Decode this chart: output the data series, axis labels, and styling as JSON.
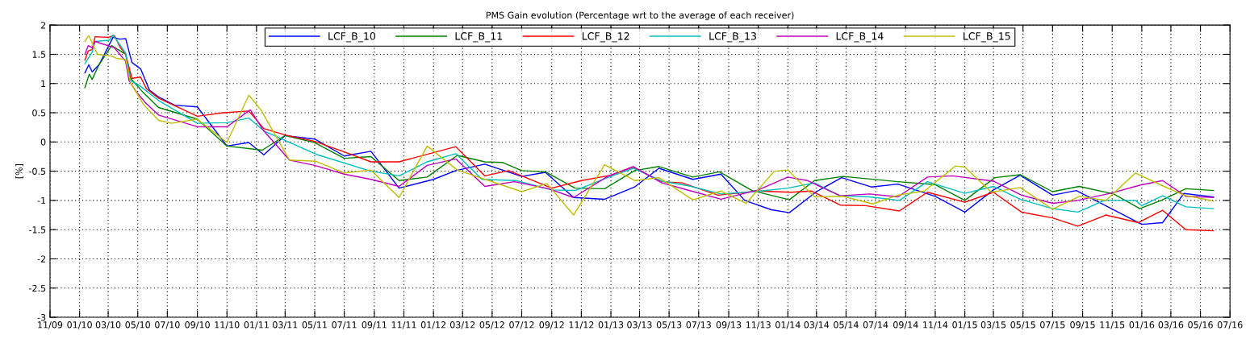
{
  "chart_data": {
    "type": "line",
    "title": "PMS Gain evolution (Percentage wrt to the average of each receiver)",
    "ylabel": "[%]",
    "xlim": [
      "2009-11-01",
      "2016-07-01"
    ],
    "xticks": [
      {
        "value": "2009-11-01",
        "label": "11/09"
      },
      {
        "value": "2010-01-01",
        "label": "01/10"
      },
      {
        "value": "2010-03-01",
        "label": "03/10"
      },
      {
        "value": "2010-05-01",
        "label": "05/10"
      },
      {
        "value": "2010-07-01",
        "label": "07/10"
      },
      {
        "value": "2010-09-01",
        "label": "09/10"
      },
      {
        "value": "2010-11-01",
        "label": "11/10"
      },
      {
        "value": "2011-01-01",
        "label": "01/11"
      },
      {
        "value": "2011-03-01",
        "label": "03/11"
      },
      {
        "value": "2011-05-01",
        "label": "05/11"
      },
      {
        "value": "2011-07-01",
        "label": "07/11"
      },
      {
        "value": "2011-09-01",
        "label": "09/11"
      },
      {
        "value": "2011-11-01",
        "label": "11/11"
      },
      {
        "value": "2012-01-01",
        "label": "01/12"
      },
      {
        "value": "2012-03-01",
        "label": "03/12"
      },
      {
        "value": "2012-05-01",
        "label": "05/12"
      },
      {
        "value": "2012-07-01",
        "label": "07/12"
      },
      {
        "value": "2012-09-01",
        "label": "09/12"
      },
      {
        "value": "2012-11-01",
        "label": "11/12"
      },
      {
        "value": "2013-01-01",
        "label": "01/13"
      },
      {
        "value": "2013-03-01",
        "label": "03/13"
      },
      {
        "value": "2013-05-01",
        "label": "05/13"
      },
      {
        "value": "2013-07-01",
        "label": "07/13"
      },
      {
        "value": "2013-09-01",
        "label": "09/13"
      },
      {
        "value": "2013-11-01",
        "label": "11/13"
      },
      {
        "value": "2014-01-01",
        "label": "01/14"
      },
      {
        "value": "2014-03-01",
        "label": "03/14"
      },
      {
        "value": "2014-05-01",
        "label": "05/14"
      },
      {
        "value": "2014-07-01",
        "label": "07/14"
      },
      {
        "value": "2014-09-01",
        "label": "09/14"
      },
      {
        "value": "2014-11-01",
        "label": "11/14"
      },
      {
        "value": "2015-01-01",
        "label": "01/15"
      },
      {
        "value": "2015-03-01",
        "label": "03/15"
      },
      {
        "value": "2015-05-01",
        "label": "05/15"
      },
      {
        "value": "2015-07-01",
        "label": "07/15"
      },
      {
        "value": "2015-09-01",
        "label": "09/15"
      },
      {
        "value": "2015-11-01",
        "label": "11/15"
      },
      {
        "value": "2016-01-01",
        "label": "01/16"
      },
      {
        "value": "2016-03-01",
        "label": "03/16"
      },
      {
        "value": "2016-05-01",
        "label": "05/16"
      },
      {
        "value": "2016-07-01",
        "label": "07/16"
      }
    ],
    "ylim": [
      -3,
      2
    ],
    "yticks": [
      -3,
      -2.5,
      -2,
      -1.5,
      -1,
      -0.5,
      0,
      0.5,
      1,
      1.5,
      2
    ],
    "grid": true,
    "legend": "top",
    "marker": "none",
    "line_style": "solid",
    "series": [
      {
        "name": "LCF_B_10",
        "color": "#0000ff",
        "x": [
          "2010-01-12",
          "2010-01-20",
          "2010-01-27",
          "2010-02-10",
          "2010-03-11",
          "2010-03-25",
          "2010-04-06",
          "2010-04-19",
          "2010-05-07",
          "2010-05-25",
          "2010-06-13",
          "2010-07-16",
          "2010-09-01",
          "2010-11-01",
          "2010-12-16",
          "2011-01-16",
          "2011-03-01",
          "2011-05-01",
          "2011-07-01",
          "2011-08-25",
          "2011-10-22",
          "2012-01-01",
          "2012-02-16",
          "2012-04-16",
          "2012-07-01",
          "2012-08-19",
          "2012-10-16",
          "2012-12-19",
          "2013-02-19",
          "2013-04-10",
          "2013-06-19",
          "2013-08-16",
          "2013-10-04",
          "2013-11-28",
          "2014-01-04",
          "2014-03-01",
          "2014-04-22",
          "2014-06-22",
          "2014-08-16",
          "2014-11-01",
          "2015-01-01",
          "2015-03-01",
          "2015-04-25",
          "2015-07-01",
          "2015-08-19",
          "2016-01-01",
          "2016-02-13",
          "2016-03-28",
          "2016-05-28"
        ],
        "values": [
          1.18,
          1.32,
          1.2,
          1.32,
          1.79,
          1.76,
          1.77,
          1.36,
          1.25,
          0.89,
          0.77,
          0.63,
          0.6,
          -0.07,
          -0.01,
          -0.22,
          0.11,
          0.05,
          -0.24,
          -0.16,
          -0.79,
          -0.64,
          -0.49,
          -0.38,
          -0.59,
          -0.52,
          -0.95,
          -0.98,
          -0.77,
          -0.45,
          -0.64,
          -0.55,
          -1,
          -1.16,
          -1.21,
          -0.85,
          -0.61,
          -0.77,
          -0.72,
          -0.93,
          -1.2,
          -0.82,
          -0.57,
          -0.91,
          -0.83,
          -1.41,
          -1.38,
          -0.88,
          -0.94
        ]
      },
      {
        "name": "LCF_B_11",
        "color": "#008000",
        "x": [
          "2010-01-12",
          "2010-01-21",
          "2010-01-27",
          "2010-02-10",
          "2010-03-08",
          "2010-04-06",
          "2010-04-16",
          "2010-05-13",
          "2010-06-13",
          "2010-09-01",
          "2010-11-01",
          "2011-01-13",
          "2011-03-01",
          "2011-05-01",
          "2011-07-01",
          "2011-08-25",
          "2011-10-22",
          "2011-12-19",
          "2012-02-19",
          "2012-04-16",
          "2012-05-22",
          "2012-07-01",
          "2012-08-19",
          "2012-10-19",
          "2012-12-19",
          "2013-02-19",
          "2013-04-10",
          "2013-06-19",
          "2013-08-13",
          "2013-10-19",
          "2014-01-04",
          "2014-02-25",
          "2014-04-25",
          "2014-08-16",
          "2014-11-01",
          "2015-01-01",
          "2015-03-04",
          "2015-04-25",
          "2015-07-01",
          "2015-08-25",
          "2015-11-04",
          "2015-12-28",
          "2016-02-10",
          "2016-04-01",
          "2016-05-28"
        ],
        "values": [
          0.93,
          1.16,
          1.07,
          1.32,
          1.65,
          1.5,
          1.09,
          0.84,
          0.59,
          0.39,
          -0.07,
          -0.14,
          0.11,
          -0.01,
          -0.28,
          -0.25,
          -0.66,
          -0.6,
          -0.23,
          -0.34,
          -0.35,
          -0.49,
          -0.51,
          -0.79,
          -0.8,
          -0.49,
          -0.42,
          -0.6,
          -0.51,
          -0.83,
          -0.99,
          -0.66,
          -0.59,
          -0.68,
          -0.73,
          -1,
          -0.61,
          -0.56,
          -0.85,
          -0.76,
          -0.89,
          -1.14,
          -1,
          -0.8,
          -0.83
        ]
      },
      {
        "name": "LCF_B_12",
        "color": "#ff0000",
        "x": [
          "2010-01-12",
          "2010-01-19",
          "2010-01-27",
          "2010-02-02",
          "2010-03-01",
          "2010-03-14",
          "2010-03-25",
          "2010-04-06",
          "2010-04-19",
          "2010-05-07",
          "2010-05-19",
          "2010-06-13",
          "2010-09-01",
          "2010-10-25",
          "2010-12-16",
          "2011-01-16",
          "2011-03-01",
          "2011-05-01",
          "2011-07-01",
          "2011-08-25",
          "2011-10-22",
          "2012-02-16",
          "2012-04-16",
          "2012-06-04",
          "2012-09-01",
          "2012-11-01",
          "2013-01-01",
          "2013-02-16",
          "2013-04-16",
          "2013-05-28",
          "2013-08-10",
          "2013-11-01",
          "2014-01-07",
          "2014-02-19",
          "2014-04-19",
          "2014-06-10",
          "2014-08-19",
          "2014-10-16",
          "2015-01-01",
          "2015-03-01",
          "2015-04-28",
          "2015-07-01",
          "2015-08-22",
          "2015-10-19",
          "2015-12-25",
          "2016-02-13",
          "2016-04-01",
          "2016-05-28"
        ],
        "values": [
          1.4,
          1.56,
          1.58,
          1.8,
          1.79,
          1.82,
          1.63,
          1.5,
          1.09,
          1.11,
          0.91,
          0.75,
          0.44,
          0.5,
          0.53,
          0.23,
          0.12,
          0.01,
          -0.17,
          -0.34,
          -0.34,
          -0.08,
          -0.58,
          -0.49,
          -0.79,
          -0.66,
          -0.57,
          -0.43,
          -0.68,
          -0.7,
          -0.91,
          -0.84,
          -0.86,
          -0.84,
          -1.08,
          -1.09,
          -1.18,
          -0.86,
          -1.03,
          -0.86,
          -1.2,
          -1.3,
          -1.44,
          -1.25,
          -1.38,
          -1.17,
          -1.5,
          -1.52
        ]
      },
      {
        "name": "LCF_B_13",
        "color": "#00bfbf",
        "x": [
          "2010-01-12",
          "2010-01-27",
          "2010-02-02",
          "2010-03-03",
          "2010-03-11",
          "2010-04-06",
          "2010-04-16",
          "2010-05-07",
          "2010-06-13",
          "2010-09-01",
          "2010-11-01",
          "2010-12-16",
          "2011-01-16",
          "2011-05-07",
          "2011-08-25",
          "2011-10-22",
          "2011-12-19",
          "2012-02-16",
          "2012-04-10",
          "2012-06-19",
          "2012-09-01",
          "2012-10-19",
          "2012-12-25",
          "2013-02-16",
          "2013-04-16",
          "2013-06-10",
          "2013-08-16",
          "2013-10-25",
          "2014-01-01",
          "2014-02-25",
          "2014-04-19",
          "2014-06-19",
          "2014-08-19",
          "2014-10-16",
          "2015-01-01",
          "2015-03-01",
          "2015-04-25",
          "2015-07-01",
          "2015-08-22",
          "2015-10-16",
          "2015-12-19",
          "2016-01-01",
          "2016-02-13",
          "2016-04-01",
          "2016-05-28"
        ],
        "values": [
          1.34,
          1.54,
          1.72,
          1.74,
          1.83,
          1.52,
          1.05,
          0.95,
          0.71,
          0.32,
          0.33,
          0.41,
          0.19,
          -0.22,
          -0.5,
          -0.58,
          -0.34,
          -0.2,
          -0.64,
          -0.66,
          -0.82,
          -0.83,
          -0.61,
          -0.45,
          -0.67,
          -0.75,
          -0.89,
          -0.85,
          -0.79,
          -0.7,
          -0.92,
          -0.94,
          -1,
          -0.68,
          -0.88,
          -0.76,
          -0.98,
          -1.14,
          -1.2,
          -1,
          -1,
          -1.09,
          -0.92,
          -1.11,
          -1.14
        ]
      },
      {
        "name": "LCF_B_14",
        "color": "#bf00bf",
        "x": [
          "2010-01-12",
          "2010-01-19",
          "2010-01-27",
          "2010-02-02",
          "2010-03-14",
          "2010-04-06",
          "2010-04-13",
          "2010-04-28",
          "2010-05-16",
          "2010-06-13",
          "2010-09-01",
          "2010-11-01",
          "2010-12-19",
          "2011-01-16",
          "2011-03-10",
          "2011-05-01",
          "2011-07-01",
          "2011-08-25",
          "2011-10-22",
          "2011-12-19",
          "2012-02-16",
          "2012-04-16",
          "2012-06-16",
          "2012-08-25",
          "2012-10-16",
          "2012-12-25",
          "2013-02-16",
          "2013-04-16",
          "2013-06-16",
          "2013-08-16",
          "2013-11-01",
          "2014-01-01",
          "2014-02-10",
          "2014-04-19",
          "2014-06-19",
          "2014-08-16",
          "2014-10-16",
          "2014-12-07",
          "2015-03-01",
          "2015-04-28",
          "2015-07-01",
          "2015-08-22",
          "2015-10-28",
          "2015-12-28",
          "2016-02-13",
          "2016-04-01",
          "2016-05-28"
        ],
        "values": [
          1.5,
          1.65,
          1.61,
          1.72,
          1.61,
          1.38,
          1.05,
          0.86,
          0.68,
          0.46,
          0.26,
          0.26,
          0.55,
          0.19,
          -0.31,
          -0.4,
          -0.55,
          -0.64,
          -0.76,
          -0.4,
          -0.29,
          -0.76,
          -0.68,
          -0.8,
          -0.95,
          -0.59,
          -0.42,
          -0.7,
          -0.84,
          -0.98,
          -0.82,
          -0.6,
          -0.66,
          -0.92,
          -0.89,
          -0.94,
          -0.6,
          -0.58,
          -0.67,
          -0.91,
          -1.05,
          -1,
          -0.88,
          -0.74,
          -0.66,
          -0.93,
          -0.95
        ]
      },
      {
        "name": "LCF_B_15",
        "color": "#bfbf00",
        "x": [
          "2010-01-12",
          "2010-01-20",
          "2010-02-07",
          "2010-03-08",
          "2010-03-19",
          "2010-04-06",
          "2010-04-16",
          "2010-05-13",
          "2010-06-13",
          "2010-07-10",
          "2010-09-01",
          "2010-11-01",
          "2010-12-16",
          "2011-01-10",
          "2011-03-10",
          "2011-05-04",
          "2011-07-01",
          "2011-08-25",
          "2011-10-22",
          "2011-12-19",
          "2012-02-19",
          "2012-07-01",
          "2012-08-22",
          "2012-10-16",
          "2012-12-19",
          "2013-02-19",
          "2013-04-10",
          "2013-06-19",
          "2013-08-16",
          "2013-10-07",
          "2013-12-04",
          "2014-01-01",
          "2014-02-25",
          "2014-04-25",
          "2014-06-25",
          "2014-08-16",
          "2014-10-10",
          "2014-12-13",
          "2015-01-01",
          "2015-02-25",
          "2015-04-25",
          "2015-07-01",
          "2015-08-25",
          "2015-10-19",
          "2015-12-19",
          "2016-02-13",
          "2016-03-28",
          "2016-05-28"
        ],
        "values": [
          1.72,
          1.82,
          1.5,
          1.47,
          1.43,
          1.41,
          1.02,
          0.64,
          0.37,
          0.32,
          0.39,
          -0.01,
          0.8,
          0.55,
          -0.31,
          -0.33,
          -0.53,
          -0.48,
          -0.95,
          -0.07,
          -0.48,
          -0.85,
          -0.71,
          -1.25,
          -0.39,
          -0.66,
          -0.61,
          -0.99,
          -0.84,
          -1.05,
          -0.5,
          -0.48,
          -0.94,
          -0.93,
          -1.06,
          -0.91,
          -0.84,
          -0.41,
          -0.43,
          -0.86,
          -0.78,
          -1.15,
          -0.93,
          -1,
          -0.53,
          -0.75,
          -0.91,
          -1.01
        ]
      }
    ]
  }
}
